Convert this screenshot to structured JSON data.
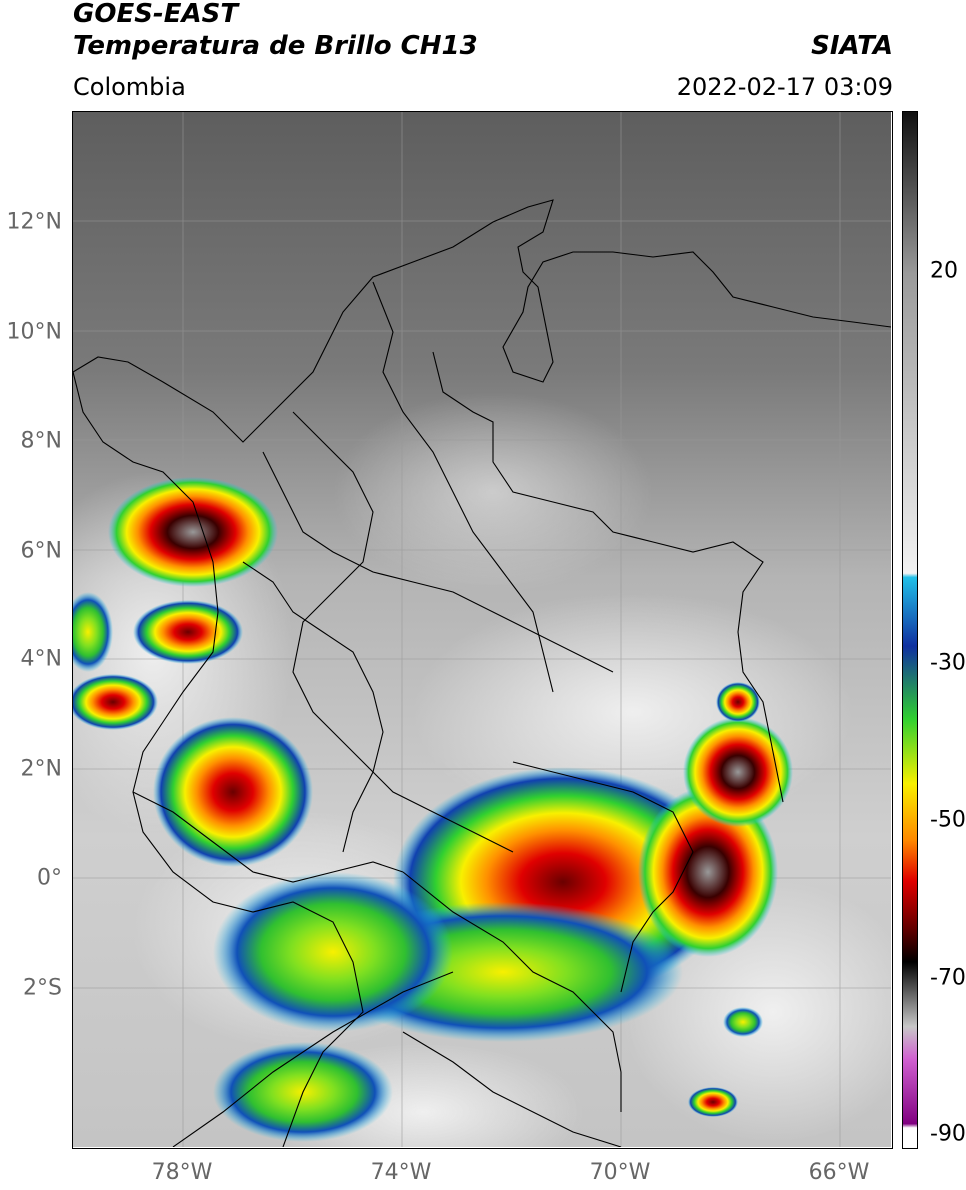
{
  "header": {
    "line1": "GOES-EAST",
    "line2": "Temperatura de Brillo CH13",
    "region": "Colombia",
    "brand": "SIATA",
    "datetime": "2022-02-17 03:09"
  },
  "map": {
    "lat_ticks": [
      "12°N",
      "10°N",
      "8°N",
      "6°N",
      "4°N",
      "2°N",
      "0°",
      "2°S"
    ],
    "lon_ticks": [
      "78°W",
      "74°W",
      "70°W",
      "66°W"
    ],
    "lat_range": [
      -4.8,
      14.1
    ],
    "lon_range": [
      -80.0,
      -65.0
    ]
  },
  "colorbar": {
    "tick_labels": [
      "20",
      "-30",
      "-50",
      "-70",
      "-90"
    ],
    "tick_values": [
      20,
      -30,
      -50,
      -70,
      -90
    ],
    "range": [
      -93,
      35
    ],
    "colors": {
      "warm_top": "#111111",
      "warm_mid": "#9a9a9a",
      "warm_low": "#f2f2f2",
      "cyan": "#22c0e8",
      "blue": "#1030a0",
      "green": "#30d030",
      "yellow": "#f8f000",
      "orange": "#ff8800",
      "red": "#e00000",
      "dark_red": "#600000",
      "black": "#000000",
      "gray_band": "#c8c8c8",
      "magenta": "#d060d0",
      "purple": "#800080"
    }
  }
}
